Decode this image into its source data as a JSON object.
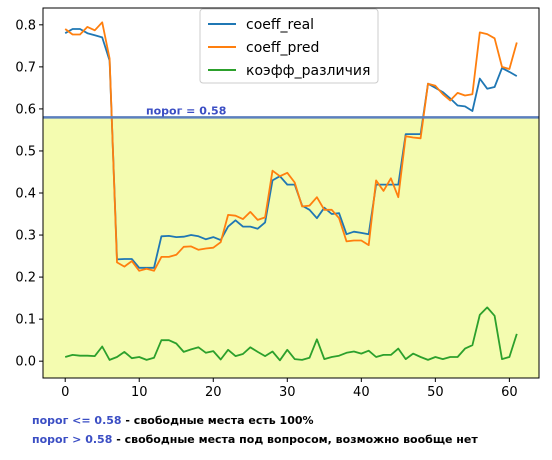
{
  "chart_data": {
    "type": "line",
    "title": "",
    "xlabel": "",
    "ylabel": "",
    "xlim": [
      -3,
      64
    ],
    "ylim": [
      -0.04,
      0.84
    ],
    "xticks": [
      0,
      10,
      20,
      30,
      40,
      50,
      60
    ],
    "yticks": [
      0.0,
      0.1,
      0.2,
      0.3,
      0.4,
      0.5,
      0.6,
      0.7,
      0.8
    ],
    "ytick_labels": [
      "0.0",
      "0.1",
      "0.2",
      "0.3",
      "0.4",
      "0.5",
      "0.6",
      "0.7",
      "0.8"
    ],
    "legend_position": "top-center",
    "x": [
      0,
      1,
      2,
      3,
      4,
      5,
      6,
      7,
      8,
      9,
      10,
      11,
      12,
      13,
      14,
      15,
      16,
      17,
      18,
      19,
      20,
      21,
      22,
      23,
      24,
      25,
      26,
      27,
      28,
      29,
      30,
      31,
      32,
      33,
      34,
      35,
      36,
      37,
      38,
      39,
      40,
      41,
      42,
      43,
      44,
      45,
      46,
      47,
      48,
      49,
      50,
      51,
      52,
      53,
      54,
      55,
      56,
      57,
      58,
      59,
      60,
      61
    ],
    "series": [
      {
        "name": "coeff_real",
        "color": "#1f77b4",
        "values": [
          0.78,
          0.79,
          0.79,
          0.78,
          0.775,
          0.77,
          0.715,
          0.242,
          0.243,
          0.243,
          0.222,
          0.222,
          0.222,
          0.297,
          0.298,
          0.295,
          0.296,
          0.3,
          0.297,
          0.29,
          0.295,
          0.288,
          0.32,
          0.335,
          0.32,
          0.32,
          0.315,
          0.33,
          0.43,
          0.44,
          0.42,
          0.42,
          0.37,
          0.36,
          0.34,
          0.365,
          0.35,
          0.352,
          0.302,
          0.308,
          0.305,
          0.302,
          0.42,
          0.42,
          0.42,
          0.42,
          0.54,
          0.54,
          0.54,
          0.66,
          0.65,
          0.64,
          0.625,
          0.608,
          0.606,
          0.595,
          0.672,
          0.648,
          0.652,
          0.697,
          0.688,
          0.678
        ]
      },
      {
        "name": "coeff_pred",
        "color": "#ff7f0e",
        "values": [
          0.79,
          0.777,
          0.777,
          0.795,
          0.787,
          0.806,
          0.72,
          0.235,
          0.225,
          0.238,
          0.215,
          0.22,
          0.215,
          0.248,
          0.248,
          0.253,
          0.272,
          0.273,
          0.265,
          0.268,
          0.27,
          0.283,
          0.348,
          0.346,
          0.338,
          0.355,
          0.336,
          0.342,
          0.453,
          0.44,
          0.448,
          0.425,
          0.368,
          0.37,
          0.39,
          0.36,
          0.36,
          0.34,
          0.285,
          0.287,
          0.287,
          0.276,
          0.43,
          0.405,
          0.435,
          0.39,
          0.535,
          0.532,
          0.53,
          0.66,
          0.655,
          0.635,
          0.62,
          0.638,
          0.632,
          0.635,
          0.782,
          0.778,
          0.768,
          0.7,
          0.695,
          0.758
        ]
      },
      {
        "name": "коэфф_различия",
        "color": "#2ca02c",
        "values": [
          0.01,
          0.015,
          0.013,
          0.013,
          0.012,
          0.035,
          0.003,
          0.01,
          0.022,
          0.007,
          0.01,
          0.003,
          0.008,
          0.05,
          0.05,
          0.042,
          0.022,
          0.028,
          0.033,
          0.02,
          0.024,
          0.004,
          0.027,
          0.012,
          0.017,
          0.033,
          0.022,
          0.012,
          0.023,
          0.002,
          0.027,
          0.005,
          0.003,
          0.008,
          0.052,
          0.005,
          0.01,
          0.013,
          0.02,
          0.023,
          0.018,
          0.025,
          0.01,
          0.015,
          0.015,
          0.03,
          0.005,
          0.018,
          0.01,
          0.003,
          0.01,
          0.005,
          0.01,
          0.01,
          0.03,
          0.038,
          0.11,
          0.128,
          0.108,
          0.005,
          0.01,
          0.065
        ]
      }
    ],
    "threshold": {
      "value": 0.58,
      "label": "порог = 0.58",
      "color": "#5b7fbe",
      "below_fill": "#f4fcb0"
    }
  },
  "footnotes": [
    {
      "key": "порог <= 0.58",
      "text": " - свободные места есть 100%"
    },
    {
      "key": "порог > 0.58",
      "text": " - свободные места под вопросом, возможно вообще нет"
    }
  ]
}
